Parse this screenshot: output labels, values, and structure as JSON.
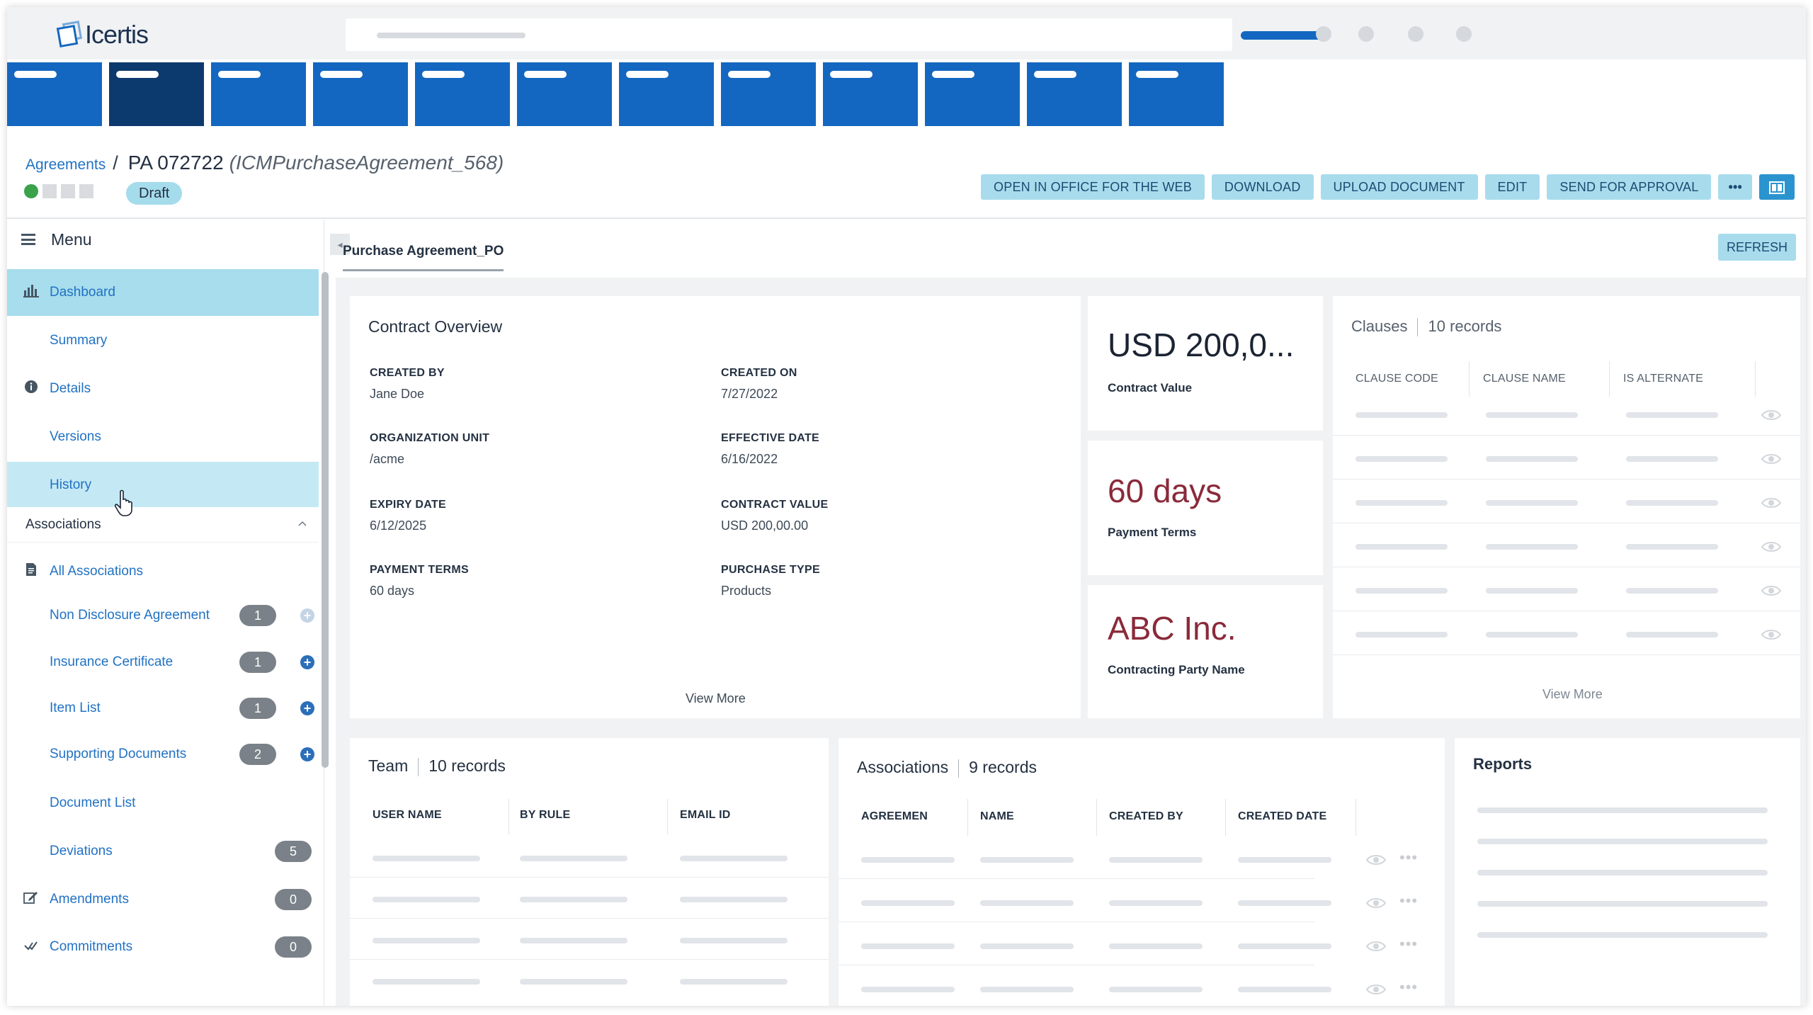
{
  "app": {
    "logo_text": "Icertis"
  },
  "breadcrumb": {
    "parent": "Agreements",
    "separator": "/",
    "title": "PA 072722",
    "subtitle": "(ICMPurchaseAgreement_568)"
  },
  "status": "Draft",
  "actions": {
    "open_office": "OPEN IN OFFICE FOR THE WEB",
    "download": "DOWNLOAD",
    "upload": "UPLOAD DOCUMENT",
    "edit": "EDIT",
    "send": "SEND FOR APPROVAL",
    "more": "•••"
  },
  "menu": {
    "title": "Menu",
    "items": [
      {
        "label": "Dashboard",
        "icon": "chart-icon"
      },
      {
        "label": "Summary"
      },
      {
        "label": "Details",
        "icon": "info-icon"
      },
      {
        "label": "Versions"
      },
      {
        "label": "History"
      }
    ],
    "associations_title": "Associations",
    "associations": [
      {
        "label": "All Associations",
        "icon": "document-icon"
      },
      {
        "label": "Non Disclosure Agreement",
        "count": "1"
      },
      {
        "label": "Insurance Certificate",
        "count": "1"
      },
      {
        "label": "Item List",
        "count": "1"
      },
      {
        "label": "Supporting Documents",
        "count": "2"
      },
      {
        "label": "Document List"
      },
      {
        "label": "Deviations",
        "count": "5"
      },
      {
        "label": "Amendments",
        "count": "0",
        "icon": "edit-icon"
      },
      {
        "label": "Commitments",
        "count": "0",
        "icon": "check-icon"
      }
    ]
  },
  "tab": {
    "label": "Purchase Agreement_PO"
  },
  "refresh_label": "REFRESH",
  "overview": {
    "title": "Contract Overview",
    "fields": [
      {
        "label": "CREATED BY",
        "value": "Jane Doe"
      },
      {
        "label": "CREATED ON",
        "value": "7/27/2022"
      },
      {
        "label": "ORGANIZATION UNIT",
        "value": "/acme"
      },
      {
        "label": "EFFECTIVE DATE",
        "value": "6/16/2022"
      },
      {
        "label": "EXPIRY DATE",
        "value": "6/12/2025"
      },
      {
        "label": "CONTRACT VALUE",
        "value": "USD 200,00.00"
      },
      {
        "label": "PAYMENT TERMS",
        "value": "60 days"
      },
      {
        "label": "PURCHASE TYPE",
        "value": "Products"
      }
    ],
    "view_more": "View More"
  },
  "kpis": [
    {
      "value": "USD 200,0...",
      "label": "Contract Value"
    },
    {
      "value": "60 days",
      "label": "Payment Terms"
    },
    {
      "value": "ABC Inc.",
      "label": "Contracting Party Name"
    }
  ],
  "clauses": {
    "title": "Clauses",
    "records": "10 records",
    "columns": [
      "CLAUSE CODE",
      "CLAUSE NAME",
      "IS ALTERNATE"
    ],
    "view_more": "View More"
  },
  "team": {
    "title": "Team",
    "records": "10 records",
    "columns": [
      "USER NAME",
      "BY RULE",
      "EMAIL ID"
    ]
  },
  "associations_card": {
    "title": "Associations",
    "records": "9 records",
    "columns": [
      "AGREEMEN",
      "NAME",
      "CREATED BY",
      "CREATED DATE"
    ]
  },
  "reports": {
    "title": "Reports"
  },
  "colors": {
    "primary": "#1467c0",
    "accent_light": "#a8dced",
    "status_green": "#3aa24b",
    "value_red": "#8a2a3a"
  }
}
